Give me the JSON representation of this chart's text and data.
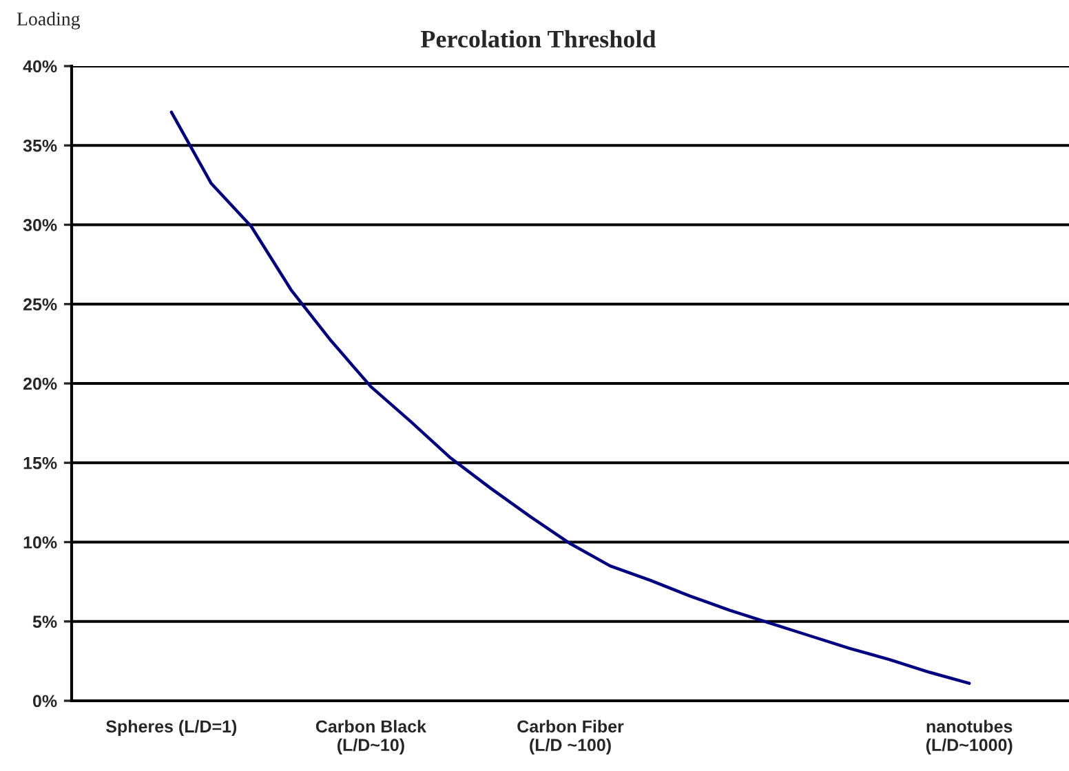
{
  "chart_data": {
    "type": "line",
    "title": "Percolation Threshold",
    "ylabel": "Loading",
    "categories": [
      null,
      null,
      "Spheres (L/D=1)",
      null,
      null,
      null,
      null,
      "Carbon Black\n(L/D~10)",
      null,
      null,
      null,
      null,
      "Carbon Fiber\n(L/D ~100)",
      null,
      null,
      null,
      null,
      null,
      null,
      null,
      null,
      null,
      "nanotubes\n(L/D~1000)",
      null,
      null
    ],
    "series": [
      {
        "color": "#000080",
        "values": [
          null,
          null,
          37.1,
          32.6,
          29.9,
          25.9,
          22.7,
          19.8,
          17.6,
          15.3,
          13.4,
          11.6,
          9.9,
          8.5,
          7.6,
          6.6,
          5.7,
          4.9,
          4.1,
          3.3,
          2.6,
          1.8,
          1.1,
          null,
          null
        ]
      }
    ],
    "ylim": [
      0,
      40
    ],
    "yticks": [
      {
        "value": 0,
        "label": "0%"
      },
      {
        "value": 5,
        "label": "5%"
      },
      {
        "value": 10,
        "label": "10%"
      },
      {
        "value": 15,
        "label": "15%"
      },
      {
        "value": 20,
        "label": "20%"
      },
      {
        "value": 25,
        "label": "25%"
      },
      {
        "value": 30,
        "label": "30%"
      },
      {
        "value": 35,
        "label": "35%"
      },
      {
        "value": 40,
        "label": "40%"
      }
    ],
    "grid": "y",
    "marker": "none",
    "line_style": "solid",
    "legend": false
  }
}
